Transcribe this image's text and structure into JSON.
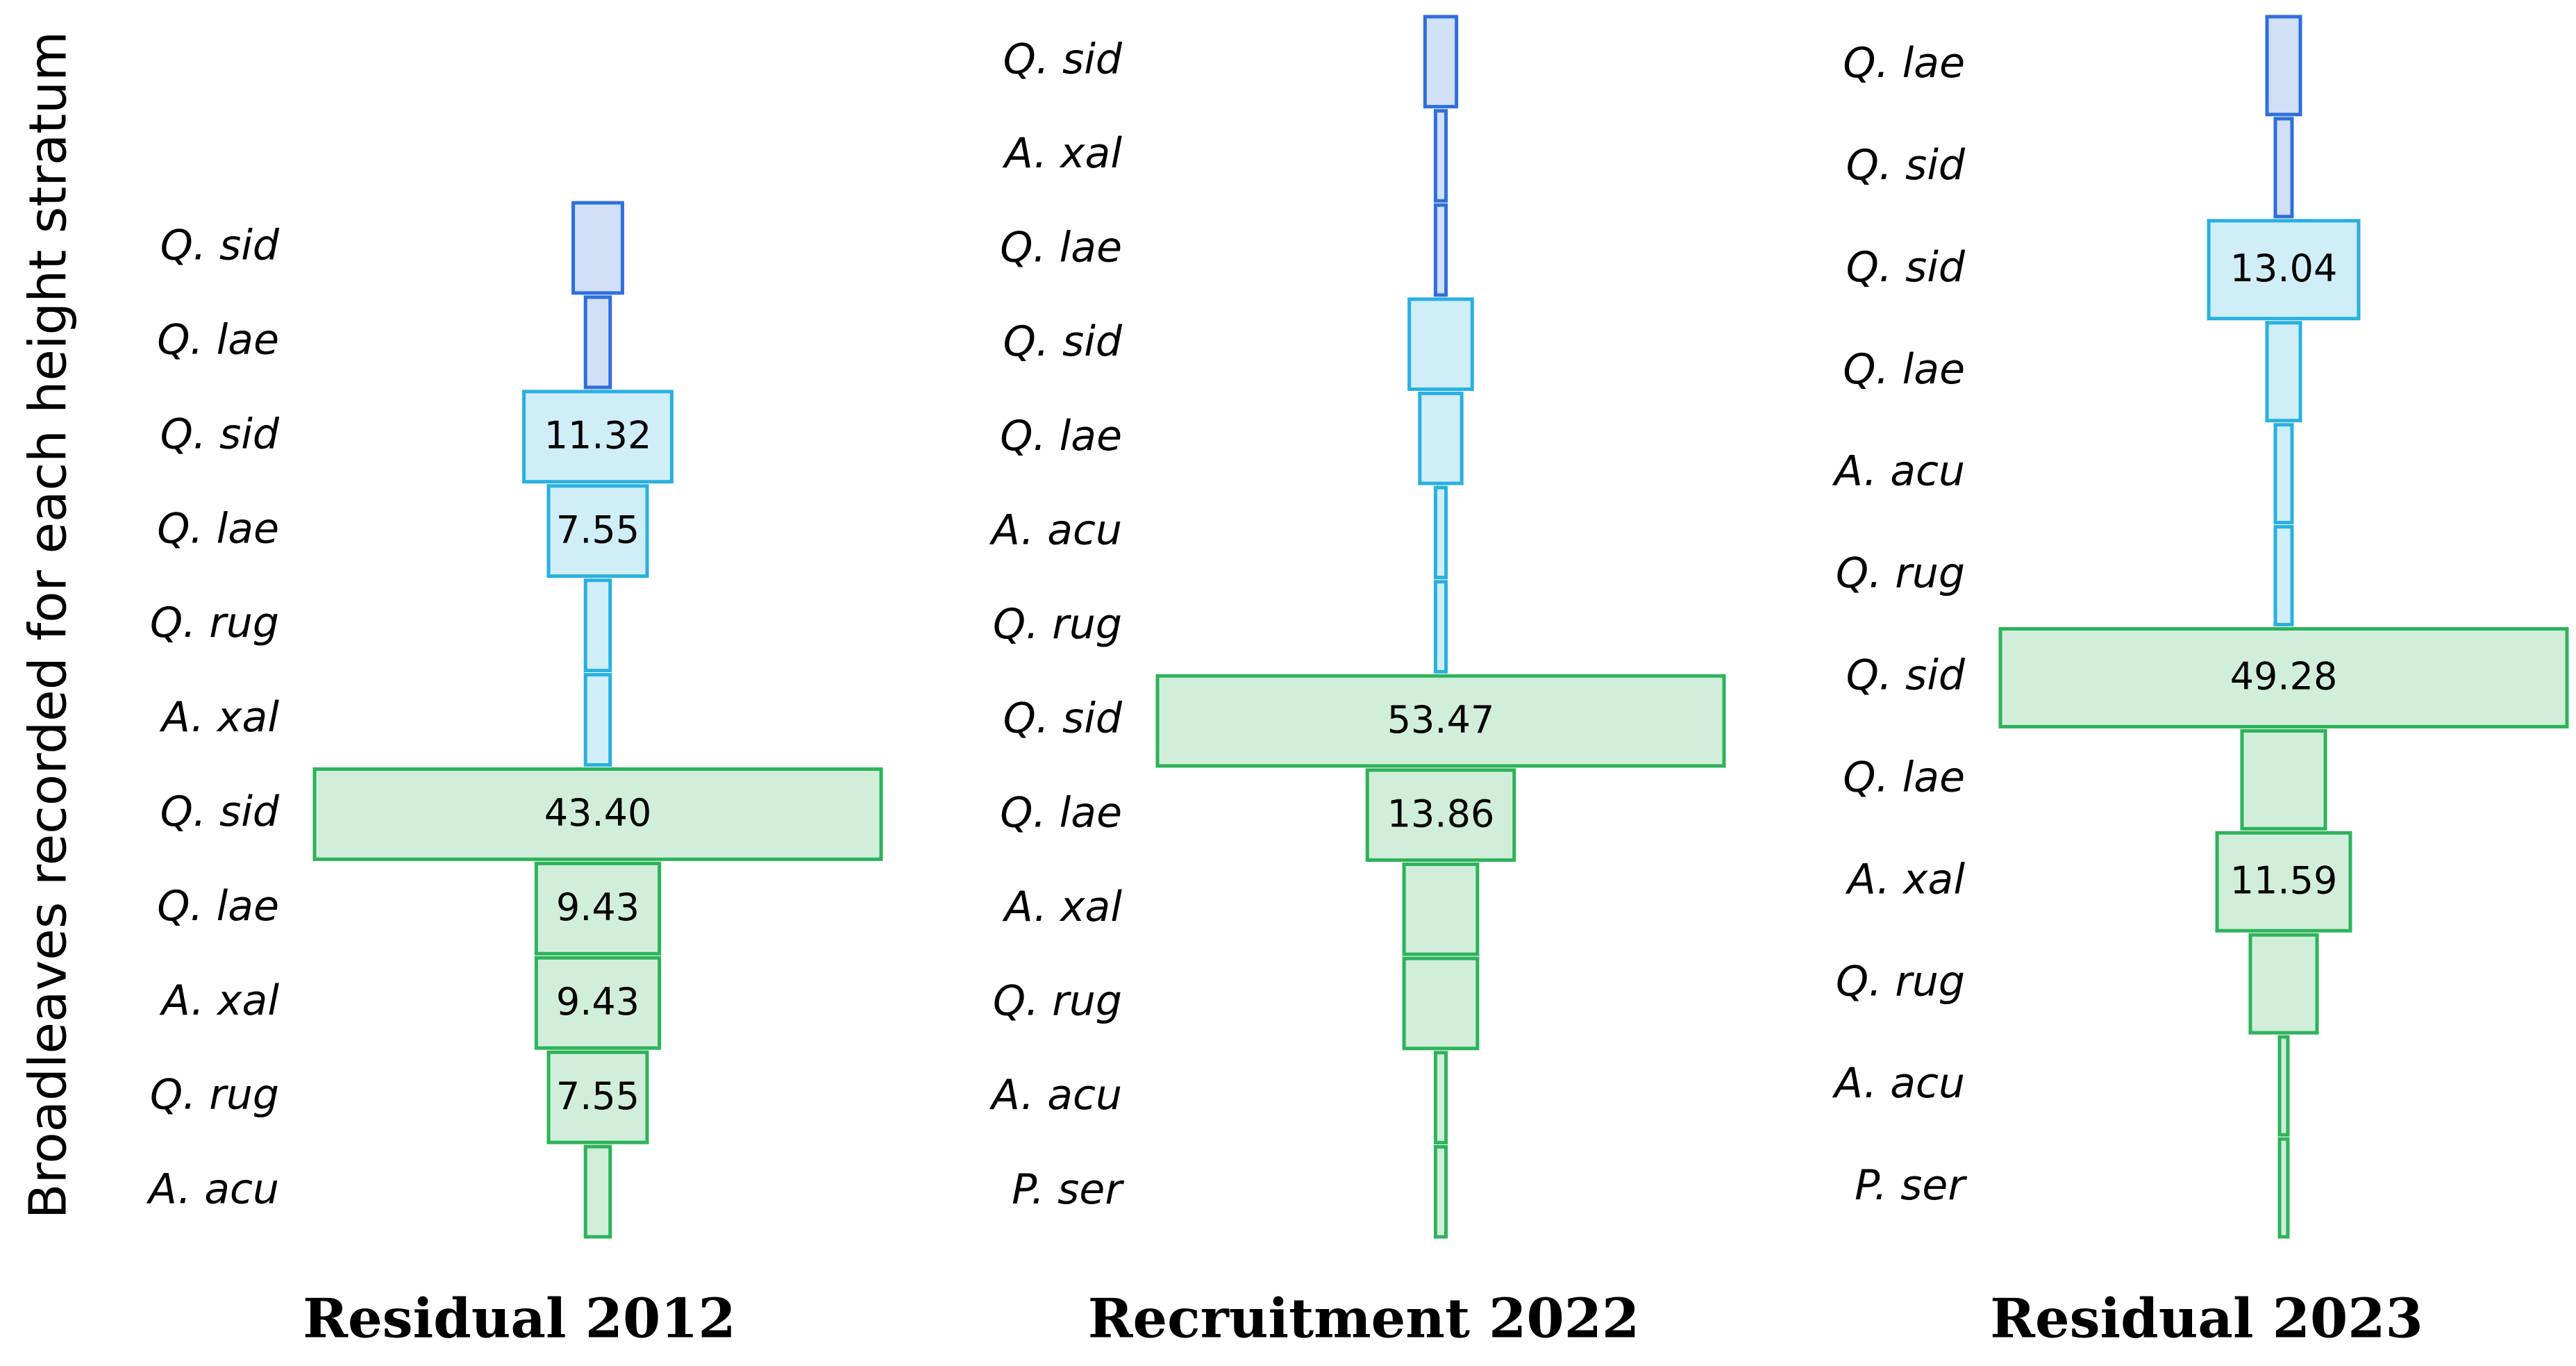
{
  "chart_data": [
    {
      "type": "funnel",
      "title": "Residual 2012",
      "ylabel": "Broadleaves recorded for each height stratum",
      "categories": [
        "Q. sid",
        "Q. lae",
        "Q. sid",
        "Q. lae",
        "Q. rug",
        "A. xal",
        "Q. sid",
        "Q. lae",
        "A. xal",
        "Q. rug",
        "A. acu"
      ],
      "values": [
        3.77,
        1.89,
        11.32,
        7.55,
        1.89,
        1.89,
        43.4,
        9.43,
        9.43,
        7.55,
        1.89
      ],
      "value_labels": [
        null,
        null,
        "11.32",
        "7.55",
        null,
        null,
        "43.40",
        "9.43",
        "9.43",
        "7.55",
        null
      ],
      "colors": [
        "#2f6fdc",
        "#2f6fdc",
        "#29b0e0",
        "#29b0e0",
        "#29b0e0",
        "#29b0e0",
        "#2db35a",
        "#2db35a",
        "#2db35a",
        "#2db35a",
        "#2db35a"
      ]
    },
    {
      "type": "funnel",
      "title": "Recruitment 2022",
      "categories": [
        "Q. sid",
        "A. xal",
        "Q. lae",
        "Q. sid",
        "Q. lae",
        "A. acu",
        "Q. rug",
        "Q. sid",
        "Q. lae",
        "A. xal",
        "Q. rug",
        "A. acu",
        "P. ser"
      ],
      "values": [
        2.97,
        0.99,
        0.99,
        5.94,
        3.96,
        0.99,
        0.99,
        53.47,
        13.86,
        6.93,
        6.93,
        0.99,
        0.99
      ],
      "value_labels": [
        null,
        null,
        null,
        null,
        null,
        null,
        null,
        "53.47",
        "13.86",
        null,
        null,
        null,
        null
      ],
      "colors": [
        "#2f6fdc",
        "#2f6fdc",
        "#2f6fdc",
        "#29b0e0",
        "#29b0e0",
        "#29b0e0",
        "#29b0e0",
        "#2db35a",
        "#2db35a",
        "#2db35a",
        "#2db35a",
        "#2db35a",
        "#2db35a"
      ]
    },
    {
      "type": "funnel",
      "title": "Residual 2023",
      "categories": [
        "Q. lae",
        "Q. sid",
        "Q. sid",
        "Q. lae",
        "A. acu",
        "Q. rug",
        "Q. sid",
        "Q. lae",
        "A. xal",
        "Q. rug",
        "A. acu",
        "P. ser"
      ],
      "values": [
        2.9,
        1.45,
        13.04,
        2.9,
        1.45,
        1.45,
        49.28,
        7.25,
        11.59,
        5.8,
        0.72,
        0.72
      ],
      "value_labels": [
        null,
        null,
        "13.04",
        null,
        null,
        null,
        "49.28",
        null,
        "11.59",
        null,
        null,
        null
      ],
      "colors": [
        "#2f6fdc",
        "#2f6fdc",
        "#29b0e0",
        "#29b0e0",
        "#29b0e0",
        "#29b0e0",
        "#2db35a",
        "#2db35a",
        "#2db35a",
        "#2db35a",
        "#2db35a",
        "#2db35a"
      ]
    }
  ]
}
